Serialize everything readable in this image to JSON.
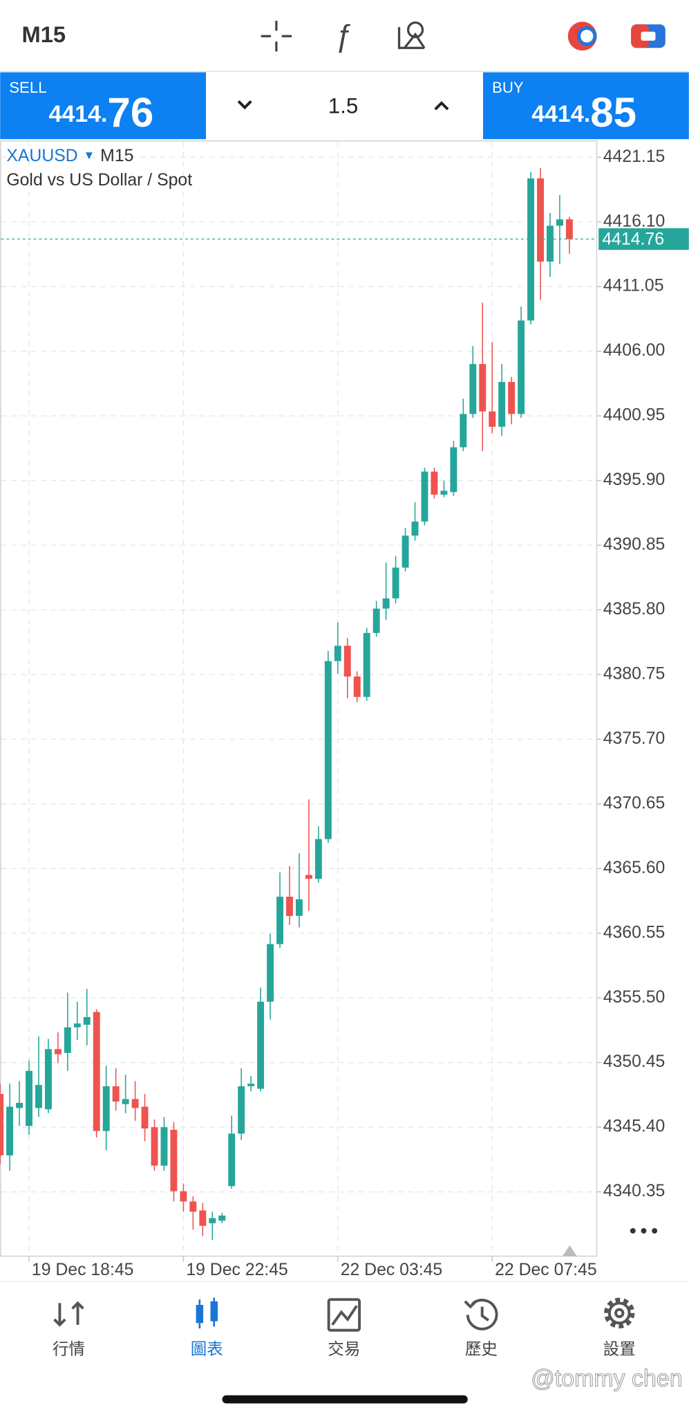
{
  "header": {
    "timeframe": "M15"
  },
  "quote": {
    "sell_label": "SELL",
    "sell_price_main": "4414.",
    "sell_price_big": "76",
    "volume": "1.5",
    "buy_label": "BUY",
    "buy_price_main": "4414.",
    "buy_price_big": "85"
  },
  "chart_data": {
    "type": "candlestick",
    "symbol": "XAUUSD",
    "timeframe": "M15",
    "subtitle": "Gold vs US Dollar / Spot",
    "categories": [
      null,
      null,
      null,
      "19 Dec 18:45",
      null,
      null,
      null,
      null,
      null,
      null,
      null,
      null,
      null,
      null,
      null,
      null,
      null,
      null,
      null,
      "19 Dec 22:45",
      null,
      null,
      null,
      null,
      null,
      null,
      null,
      null,
      null,
      null,
      null,
      null,
      null,
      null,
      null,
      "22 Dec 03:45",
      null,
      null,
      null,
      null,
      null,
      null,
      null,
      null,
      null,
      null,
      null,
      null,
      null,
      null,
      null,
      "22 Dec 07:45",
      null,
      null,
      null,
      null,
      null,
      null,
      null,
      null
    ],
    "open": [
      4348.0,
      4343.2,
      4346.9,
      4345.5,
      4346.9,
      4346.8,
      4351.5,
      4351.2,
      4353.2,
      4353.4,
      4354.4,
      4345.1,
      4348.6,
      4347.2,
      4347.6,
      4347.0,
      4345.4,
      4342.4,
      4345.2,
      4340.4,
      4339.6,
      4338.9,
      4337.9,
      4338.1,
      4340.8,
      4344.9,
      4348.6,
      4348.4,
      4355.2,
      4359.7,
      4363.4,
      4361.9,
      4365.1,
      4364.8,
      4367.9,
      4381.8,
      4383.0,
      4380.6,
      4379.0,
      4384.0,
      4385.9,
      4386.7,
      4389.1,
      4391.6,
      4392.7,
      4396.6,
      4394.8,
      4395.0,
      4398.5,
      4401.1,
      4405.0,
      4401.3,
      4400.1,
      4403.6,
      4401.1,
      4408.4,
      4419.5,
      4413.0,
      4415.8,
      4416.3
    ],
    "high": [
      4348.8,
      4348.8,
      4349.0,
      4350.6,
      4352.5,
      4352.3,
      4352.8,
      4355.9,
      4355.2,
      4356.2,
      4354.6,
      4350.2,
      4350.0,
      4349.5,
      4349.0,
      4348.0,
      4346.0,
      4346.2,
      4345.8,
      4341.0,
      4340.0,
      4339.5,
      4338.8,
      4338.7,
      4346.3,
      4350.0,
      4349.4,
      4356.3,
      4360.5,
      4365.3,
      4365.8,
      4366.8,
      4371.0,
      4368.9,
      4382.6,
      4384.8,
      4383.6,
      4381.0,
      4384.4,
      4386.5,
      4389.5,
      4390.0,
      4392.2,
      4394.2,
      4396.9,
      4396.9,
      4395.9,
      4399.0,
      4402.3,
      4406.4,
      4409.8,
      4406.7,
      4405.0,
      4404.0,
      4409.5,
      4420.0,
      4420.3,
      4416.8,
      4418.2,
      4416.5
    ],
    "low": [
      4342.5,
      4342.0,
      4345.5,
      4344.8,
      4346.2,
      4346.5,
      4350.4,
      4349.8,
      4352.2,
      4351.8,
      4344.6,
      4343.6,
      4346.7,
      4346.5,
      4345.9,
      4344.3,
      4342.0,
      4342.0,
      4339.6,
      4338.8,
      4337.4,
      4336.9,
      4336.6,
      4337.9,
      4340.6,
      4344.4,
      4348.2,
      4348.2,
      4353.8,
      4359.4,
      4361.2,
      4361.0,
      4362.3,
      4364.5,
      4367.6,
      4380.8,
      4378.9,
      4378.6,
      4378.7,
      4383.7,
      4385.0,
      4386.3,
      4388.8,
      4391.2,
      4392.4,
      4394.5,
      4394.6,
      4394.7,
      4398.2,
      4400.8,
      4398.2,
      4399.6,
      4399.4,
      4400.3,
      4400.8,
      4408.1,
      4410.0,
      4411.8,
      4412.8,
      4413.6
    ],
    "close": [
      4343.2,
      4347.0,
      4347.3,
      4349.8,
      4348.7,
      4351.5,
      4351.1,
      4353.2,
      4353.5,
      4354.0,
      4345.1,
      4348.6,
      4347.4,
      4347.6,
      4346.9,
      4345.3,
      4342.4,
      4345.4,
      4340.4,
      4339.6,
      4338.8,
      4337.7,
      4338.3,
      4338.5,
      4344.9,
      4348.6,
      4348.8,
      4355.2,
      4359.7,
      4363.4,
      4361.9,
      4363.2,
      4364.8,
      4367.9,
      4381.8,
      4383.0,
      4380.6,
      4379.0,
      4384.0,
      4385.9,
      4386.7,
      4389.1,
      4391.6,
      4392.7,
      4396.6,
      4394.8,
      4395.1,
      4398.5,
      4401.1,
      4405.0,
      4401.3,
      4400.1,
      4403.6,
      4401.1,
      4408.4,
      4419.5,
      4413.0,
      4415.8,
      4416.3,
      4414.76
    ],
    "up_color": "#26a69a",
    "down_color": "#ef5350",
    "ylim": [
      4335.33,
      4422.35
    ],
    "yticks": [
      4421.15,
      {
        "value": 4416.1,
        "label": "4416.10"
      },
      4411.05,
      {
        "value": 4406.0,
        "label": "4406.00"
      },
      4400.95,
      {
        "value": 4395.9,
        "label": "4395.90"
      },
      4390.85,
      {
        "value": 4385.8,
        "label": "4385.80"
      },
      4380.75,
      {
        "value": 4375.7,
        "label": "4375.70"
      },
      4370.65,
      {
        "value": 4365.6,
        "label": "4365.60"
      },
      4360.55,
      {
        "value": 4355.5,
        "label": "4355.50"
      },
      4350.45,
      {
        "value": 4345.4,
        "label": "4345.40"
      },
      4340.35
    ],
    "current_price": 4414.76,
    "grid": true
  },
  "nav": [
    "行情",
    "圖表",
    "交易",
    "歷史",
    "設置"
  ],
  "watermark": "@tommy chen"
}
